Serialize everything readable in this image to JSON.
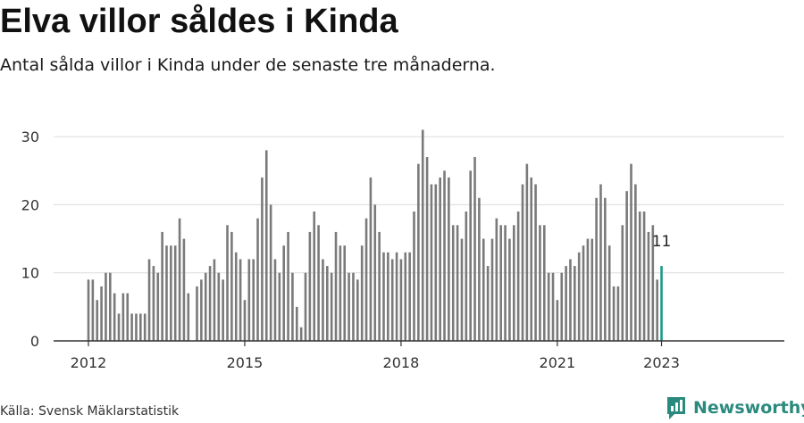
{
  "header": {
    "title": "Elva villor såldes i Kinda",
    "subtitle": "Antal sålda villor i Kinda under de senaste tre månaderna."
  },
  "footer": {
    "source": "Källa: Svensk Mäklarstatistik",
    "brand": "Newsworthy"
  },
  "colors": {
    "bar": "#7a7a7a",
    "highlight": "#1a9b8a",
    "grid": "#dcdcdc",
    "axis": "#333333",
    "brand": "#2b8a7e"
  },
  "icons": {
    "logo": "newsworthy-logo-icon"
  },
  "chart_data": {
    "type": "bar",
    "title": "Elva villor såldes i Kinda",
    "xlabel": "",
    "ylabel": "",
    "x_start": "2012-01",
    "x_end": "2023-01",
    "x_ticks": [
      "2012",
      "2015",
      "2018",
      "2021",
      "2023"
    ],
    "y_ticks": [
      0,
      10,
      20,
      30
    ],
    "ylim": [
      0,
      31
    ],
    "grid": true,
    "highlight_label": "11",
    "values": [
      9,
      9,
      6,
      8,
      10,
      10,
      7,
      4,
      7,
      7,
      4,
      4,
      4,
      4,
      12,
      11,
      10,
      16,
      14,
      14,
      14,
      18,
      15,
      7,
      null,
      8,
      9,
      10,
      11,
      12,
      10,
      9,
      17,
      16,
      13,
      12,
      6,
      12,
      12,
      18,
      24,
      28,
      20,
      12,
      10,
      14,
      16,
      10,
      5,
      2,
      10,
      16,
      19,
      17,
      12,
      11,
      10,
      16,
      14,
      14,
      10,
      10,
      9,
      14,
      18,
      24,
      20,
      16,
      13,
      13,
      12,
      13,
      12,
      13,
      13,
      19,
      26,
      31,
      27,
      23,
      23,
      24,
      25,
      24,
      17,
      17,
      15,
      19,
      25,
      27,
      21,
      15,
      11,
      15,
      18,
      17,
      17,
      15,
      17,
      19,
      23,
      26,
      24,
      23,
      17,
      17,
      10,
      10,
      6,
      10,
      11,
      12,
      11,
      13,
      14,
      15,
      15,
      21,
      23,
      21,
      14,
      8,
      8,
      17,
      22,
      26,
      23,
      19,
      19,
      16,
      17,
      9,
      11
    ]
  }
}
